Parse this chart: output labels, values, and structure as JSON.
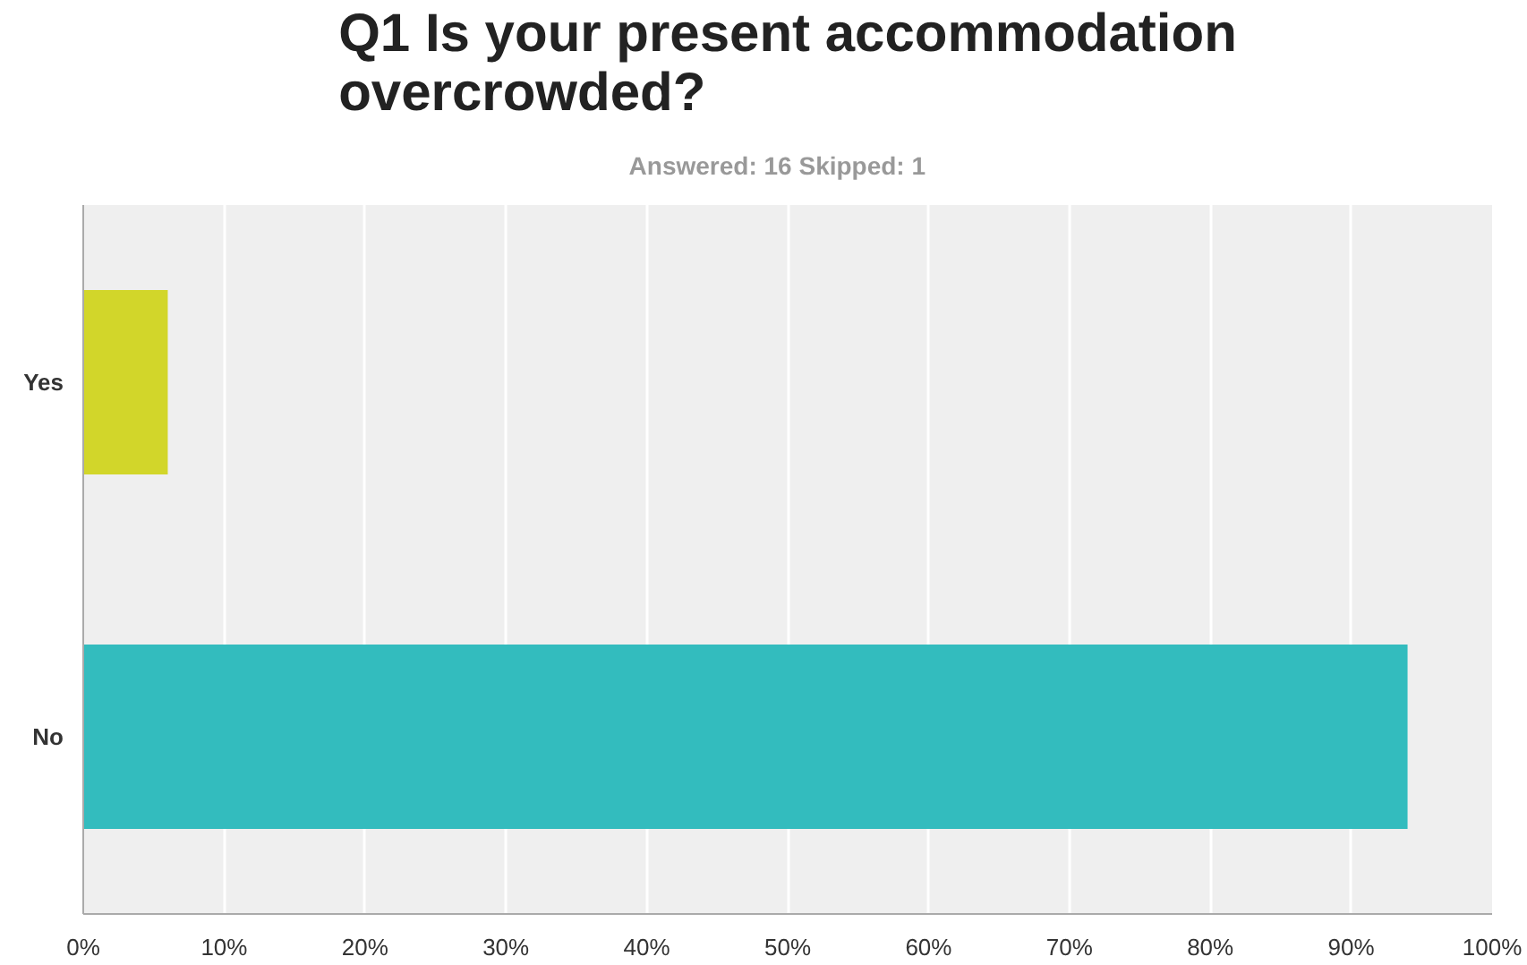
{
  "chart_data": {
    "type": "bar",
    "orientation": "horizontal",
    "title": "Q1 Is your present accommodation overcrowded?",
    "subtitle": "Answered: 16    Skipped: 1",
    "categories": [
      "Yes",
      "No"
    ],
    "values": [
      6,
      94
    ],
    "colors": [
      "#d2d62a",
      "#33bcbe"
    ],
    "xlim": [
      0,
      100
    ],
    "xticks": [
      {
        "value": 0,
        "label": "0%"
      },
      {
        "value": 10,
        "label": "10%"
      },
      {
        "value": 20,
        "label": "20%"
      },
      {
        "value": 30,
        "label": "30%"
      },
      {
        "value": 40,
        "label": "40%"
      },
      {
        "value": 50,
        "label": "50%"
      },
      {
        "value": 60,
        "label": "60%"
      },
      {
        "value": 70,
        "label": "70%"
      },
      {
        "value": 80,
        "label": "80%"
      },
      {
        "value": 90,
        "label": "90%"
      },
      {
        "value": 100,
        "label": "100%"
      }
    ],
    "grid": "x"
  }
}
